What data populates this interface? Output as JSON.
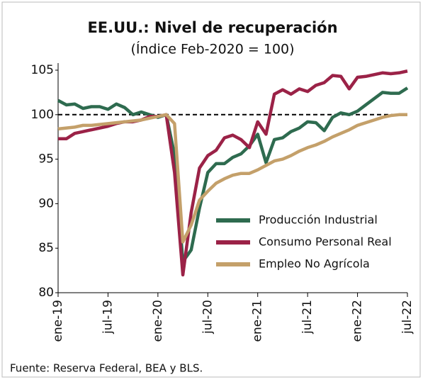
{
  "chart_data": {
    "type": "line",
    "title": "EE.UU.: Nivel de recuperación",
    "subtitle": "(Índice Feb-2020 = 100)",
    "source": "Fuente: Reserva Federal, BEA y BLS.",
    "categories": [
      "ene-19",
      null,
      null,
      null,
      null,
      null,
      "jul-19",
      null,
      null,
      null,
      null,
      null,
      "ene-20",
      null,
      null,
      null,
      null,
      null,
      "jul-20",
      null,
      null,
      null,
      null,
      null,
      "ene-21",
      null,
      null,
      null,
      null,
      null,
      "jul-21",
      null,
      null,
      null,
      null,
      null,
      "ene-22",
      null,
      null,
      null,
      null,
      null,
      "jul-22"
    ],
    "series": [
      {
        "name": "Producción Industrial",
        "color": "#2e6b4f",
        "values": [
          101.6,
          101.1,
          101.2,
          100.7,
          100.9,
          100.9,
          100.6,
          101.2,
          100.8,
          100.0,
          100.3,
          100.0,
          99.7,
          100.0,
          95.5,
          83.5,
          84.8,
          89.5,
          93.5,
          94.5,
          94.5,
          95.2,
          95.6,
          96.5,
          97.8,
          94.6,
          97.2,
          97.4,
          98.1,
          98.5,
          99.2,
          99.1,
          98.2,
          99.7,
          100.2,
          100.0,
          100.4,
          101.1,
          101.8,
          102.5,
          102.4,
          102.4,
          103.0
        ]
      },
      {
        "name": "Consumo Personal Real",
        "color": "#9b2247",
        "values": [
          97.3,
          97.3,
          97.9,
          98.1,
          98.3,
          98.5,
          98.7,
          99.0,
          99.2,
          99.2,
          99.4,
          99.8,
          99.8,
          100.0,
          93.5,
          82.0,
          89.0,
          94.0,
          95.4,
          96.0,
          97.4,
          97.7,
          97.2,
          96.3,
          99.2,
          97.8,
          102.3,
          102.8,
          102.3,
          102.9,
          102.6,
          103.3,
          103.6,
          104.4,
          104.3,
          102.9,
          104.2,
          104.3,
          104.5,
          104.7,
          104.6,
          104.7,
          104.9
        ]
      },
      {
        "name": "Empleo No Agrícola",
        "color": "#c4a06a",
        "values": [
          98.4,
          98.5,
          98.6,
          98.8,
          98.8,
          98.9,
          99.0,
          99.1,
          99.2,
          99.3,
          99.4,
          99.6,
          99.8,
          100.0,
          99.0,
          85.7,
          87.6,
          90.4,
          91.4,
          92.3,
          92.8,
          93.2,
          93.4,
          93.4,
          93.8,
          94.3,
          94.8,
          95.0,
          95.4,
          95.9,
          96.3,
          96.6,
          97.0,
          97.5,
          97.9,
          98.3,
          98.8,
          99.1,
          99.4,
          99.7,
          99.9,
          100.0,
          100.0
        ]
      }
    ],
    "reference_line": 100,
    "ylim": [
      80,
      105
    ],
    "yticks": [
      80,
      85,
      90,
      95,
      100,
      105
    ],
    "legend": "right"
  }
}
